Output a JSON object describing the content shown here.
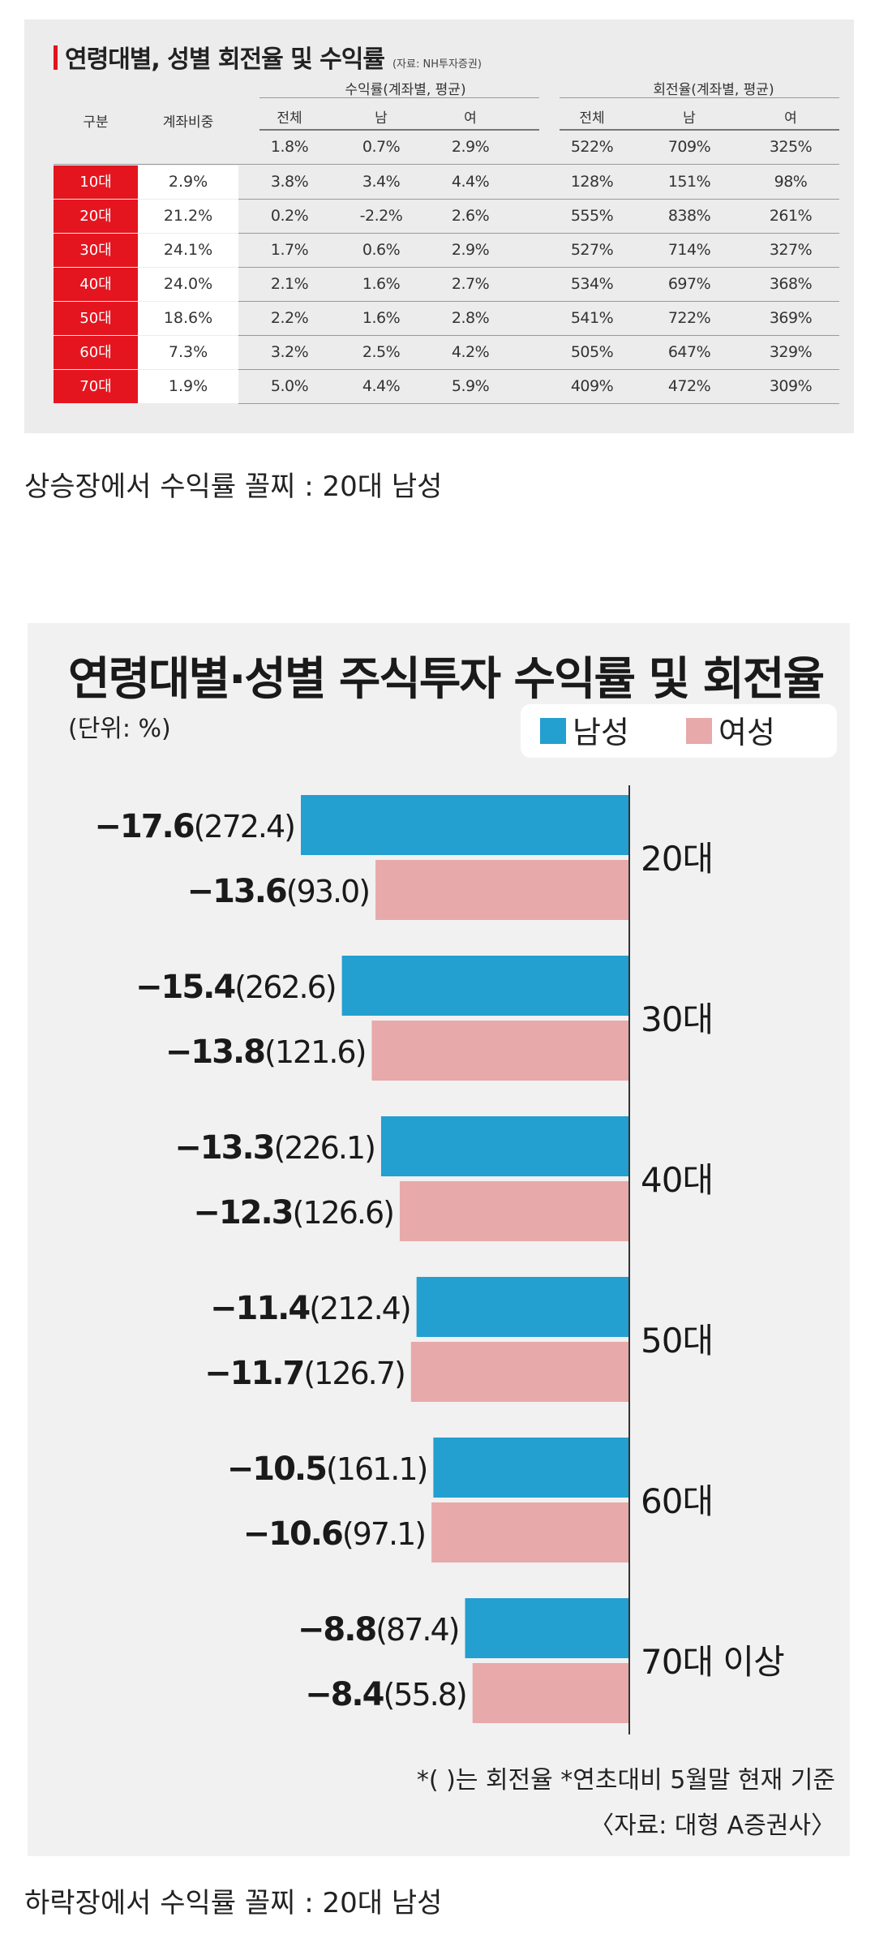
{
  "table": {
    "title": "연령대별, 성별 회전율 및 수익률",
    "source": "(자료: NH투자증권)",
    "col_group_return": "수익률(계좌별, 평균)",
    "col_group_turnover": "회전율(계좌별, 평균)",
    "col_group": "구분",
    "col_share": "계좌비중",
    "sub_headers": [
      "전체",
      "남",
      "여",
      "전체",
      "남",
      "여"
    ],
    "summary_row": [
      "1.8%",
      "0.7%",
      "2.9%",
      "522%",
      "709%",
      "325%"
    ],
    "rows": [
      {
        "age": "10대",
        "share": "2.9%",
        "values": [
          "3.8%",
          "3.4%",
          "4.4%",
          "128%",
          "151%",
          "98%"
        ]
      },
      {
        "age": "20대",
        "share": "21.2%",
        "values": [
          "0.2%",
          "-2.2%",
          "2.6%",
          "555%",
          "838%",
          "261%"
        ]
      },
      {
        "age": "30대",
        "share": "24.1%",
        "values": [
          "1.7%",
          "0.6%",
          "2.9%",
          "527%",
          "714%",
          "327%"
        ]
      },
      {
        "age": "40대",
        "share": "24.0%",
        "values": [
          "2.1%",
          "1.6%",
          "2.7%",
          "534%",
          "697%",
          "368%"
        ]
      },
      {
        "age": "50대",
        "share": "18.6%",
        "values": [
          "2.2%",
          "1.6%",
          "2.8%",
          "541%",
          "722%",
          "369%"
        ]
      },
      {
        "age": "60대",
        "share": "7.3%",
        "values": [
          "3.2%",
          "2.5%",
          "4.2%",
          "505%",
          "647%",
          "329%"
        ]
      },
      {
        "age": "70대",
        "share": "1.9%",
        "values": [
          "5.0%",
          "4.4%",
          "5.9%",
          "409%",
          "472%",
          "309%"
        ]
      }
    ]
  },
  "caption_top": "상승장에서 수익률 꼴찌 : 20대 남성",
  "caption_bottom": "하락장에서 수익률 꼴찌 : 20대 남성",
  "chart_data": {
    "type": "bar",
    "orientation": "horizontal",
    "title": "연령대별·성별 주식투자 수익률 및 회전율",
    "unit_label": "(단위: %)",
    "categories": [
      "20대",
      "30대",
      "40대",
      "50대",
      "60대",
      "70대 이상"
    ],
    "series": [
      {
        "name": "남성",
        "color": "#239fd0",
        "values": [
          -17.6,
          -15.4,
          -13.3,
          -11.4,
          -10.5,
          -8.8
        ],
        "turnover": [
          272.4,
          262.6,
          226.1,
          212.4,
          161.1,
          87.4
        ],
        "value_labels": [
          "−17.6",
          "−15.4",
          "−13.3",
          "−11.4",
          "−10.5",
          "−8.8"
        ],
        "turnover_labels": [
          "(272.4)",
          "(262.6)",
          "(226.1)",
          "(212.4)",
          "(161.1)",
          "(87.4)"
        ]
      },
      {
        "name": "여성",
        "color": "#e8a9aa",
        "values": [
          -13.6,
          -13.8,
          -12.3,
          -11.7,
          -10.6,
          -8.4
        ],
        "turnover": [
          93.0,
          121.6,
          126.6,
          126.7,
          97.1,
          55.8
        ],
        "value_labels": [
          "−13.6",
          "−13.8",
          "−12.3",
          "−11.7",
          "−10.6",
          "−8.4"
        ],
        "turnover_labels": [
          "(93.0)",
          "(121.6)",
          "(126.6)",
          "(126.7)",
          "(97.1)",
          "(55.8)"
        ]
      }
    ],
    "xlim": [
      -17.6,
      0
    ],
    "legend_position": "top-right",
    "footnote": "*(  )는 회전율 *연초대비 5월말 현재 기준",
    "source": "〈자료: 대형 A증권사〉"
  }
}
